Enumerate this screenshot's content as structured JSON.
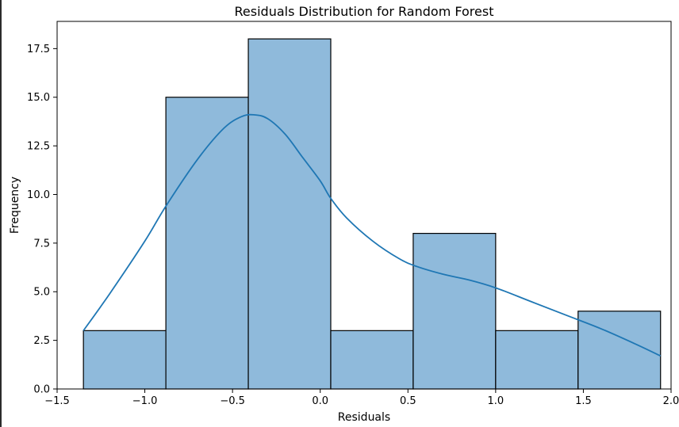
{
  "chart_data": {
    "type": "bar",
    "title": "Residuals Distribution for Random Forest",
    "xlabel": "Residuals",
    "ylabel": "Frequency",
    "xlim": [
      -1.5,
      2.0
    ],
    "ylim": [
      0,
      18.9
    ],
    "x_ticks": [
      -1.5,
      -1.0,
      -0.5,
      0.0,
      0.5,
      1.0,
      1.5,
      2.0
    ],
    "x_tick_labels": [
      "−1.5",
      "−1.0",
      "−0.5",
      "0.0",
      "0.5",
      "1.0",
      "1.5",
      "2.0"
    ],
    "y_ticks": [
      0,
      2.5,
      5.0,
      7.5,
      10.0,
      12.5,
      15.0,
      17.5
    ],
    "y_tick_labels": [
      "0.0",
      "2.5",
      "5.0",
      "7.5",
      "10.0",
      "12.5",
      "15.0",
      "17.5"
    ],
    "bins": [
      {
        "x0": -1.35,
        "x1": -0.88,
        "count": 3
      },
      {
        "x0": -0.88,
        "x1": -0.41,
        "count": 15
      },
      {
        "x0": -0.41,
        "x1": 0.06,
        "count": 18
      },
      {
        "x0": 0.06,
        "x1": 0.53,
        "count": 3
      },
      {
        "x0": 0.53,
        "x1": 1.0,
        "count": 8
      },
      {
        "x0": 1.0,
        "x1": 1.47,
        "count": 3
      },
      {
        "x0": 1.47,
        "x1": 1.94,
        "count": 4
      }
    ],
    "kde": {
      "x": [
        -1.35,
        -1.2,
        -1.0,
        -0.88,
        -0.7,
        -0.55,
        -0.45,
        -0.38,
        -0.3,
        -0.2,
        -0.1,
        0.0,
        0.06,
        0.15,
        0.3,
        0.45,
        0.55,
        0.7,
        0.85,
        1.0,
        1.2,
        1.4,
        1.6,
        1.8,
        1.94
      ],
      "y": [
        3.0,
        4.9,
        7.6,
        9.4,
        11.8,
        13.4,
        14.0,
        14.1,
        13.9,
        13.1,
        11.9,
        10.7,
        9.8,
        8.8,
        7.6,
        6.7,
        6.3,
        5.9,
        5.6,
        5.2,
        4.5,
        3.8,
        3.1,
        2.3,
        1.7
      ]
    },
    "colors": {
      "bar_fill": "#8fbadb",
      "bar_edge": "#000000",
      "kde_line": "#1f77b4"
    },
    "grid": false,
    "legend": "none"
  }
}
